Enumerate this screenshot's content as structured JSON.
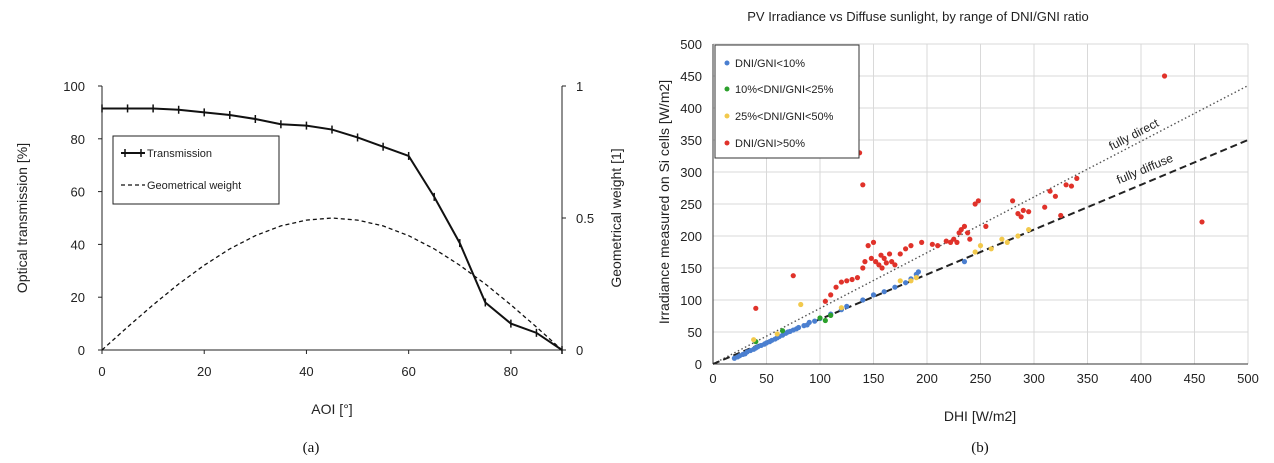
{
  "figure": {
    "caption_a": "(a)",
    "caption_b": "(b)"
  },
  "chart_data": [
    {
      "type": "line",
      "title": "",
      "xlabel": "AOI [°]",
      "ylabel": "Optical transmission [%]",
      "y2label": "Geometrical weight [1]",
      "xlim": [
        0,
        90
      ],
      "ylim": [
        0,
        100
      ],
      "y2lim": [
        0,
        1
      ],
      "xticks": [
        "0",
        "20",
        "40",
        "60",
        "80"
      ],
      "yticks": [
        "0",
        "20",
        "40",
        "60",
        "80",
        "100"
      ],
      "y2ticks": [
        "0",
        "0.5",
        "1"
      ],
      "legend_position": "upper-left",
      "grid": false,
      "series": [
        {
          "name": "Transmission",
          "axis": "left",
          "style": "solid-with-markers",
          "color": "#111111",
          "x": [
            0,
            5,
            10,
            15,
            20,
            25,
            30,
            35,
            40,
            45,
            50,
            55,
            60,
            65,
            70,
            75,
            80,
            85,
            90
          ],
          "y": [
            91.5,
            91.5,
            91.5,
            91,
            90,
            89,
            87.5,
            85.5,
            85,
            83.5,
            80.5,
            77,
            73.5,
            58,
            40.5,
            18,
            10,
            6.5,
            0
          ]
        },
        {
          "name": "Geometrical weight",
          "axis": "right",
          "style": "dashed",
          "color": "#111111",
          "x": [
            0,
            5,
            10,
            15,
            20,
            25,
            30,
            35,
            40,
            45,
            50,
            55,
            60,
            65,
            70,
            75,
            80,
            85,
            90
          ],
          "y": [
            0,
            0.087,
            0.171,
            0.25,
            0.321,
            0.383,
            0.433,
            0.47,
            0.492,
            0.5,
            0.492,
            0.47,
            0.433,
            0.383,
            0.321,
            0.25,
            0.171,
            0.087,
            0
          ]
        }
      ]
    },
    {
      "type": "scatter",
      "title": "PV Irradiance vs Diffuse sunlight, by range of DNI/GNI ratio",
      "xlabel": "DHI [W/m2]",
      "ylabel": "Irradiance measured on Si cells [W/m2]",
      "xlim": [
        0,
        500
      ],
      "ylim": [
        0,
        500
      ],
      "xticks": [
        "0",
        "50",
        "100",
        "150",
        "200",
        "250",
        "300",
        "350",
        "400",
        "450",
        "500"
      ],
      "yticks": [
        "0",
        "50",
        "100",
        "150",
        "200",
        "250",
        "300",
        "350",
        "400",
        "450",
        "500"
      ],
      "grid": true,
      "legend_position": "upper-left",
      "reference_lines": [
        {
          "label": "fully direct",
          "style": "dotted",
          "color": "#555555",
          "slope": 0.87,
          "intercept": 0
        },
        {
          "label": "fully diffuse",
          "style": "dashed",
          "color": "#222222",
          "slope": 0.7,
          "intercept": 0
        }
      ],
      "series": [
        {
          "name": "DNI/GNI<10%",
          "color": "#4a7fd0",
          "points": [
            [
              20,
              9
            ],
            [
              23,
              11
            ],
            [
              25,
              13
            ],
            [
              28,
              15
            ],
            [
              30,
              16
            ],
            [
              32,
              19
            ],
            [
              35,
              21
            ],
            [
              38,
              23
            ],
            [
              40,
              25
            ],
            [
              42,
              27
            ],
            [
              45,
              29
            ],
            [
              48,
              31
            ],
            [
              50,
              33
            ],
            [
              53,
              35
            ],
            [
              55,
              37
            ],
            [
              58,
              39
            ],
            [
              60,
              41
            ],
            [
              62,
              43
            ],
            [
              65,
              45
            ],
            [
              68,
              48
            ],
            [
              70,
              50
            ],
            [
              72,
              51
            ],
            [
              75,
              53
            ],
            [
              78,
              55
            ],
            [
              80,
              57
            ],
            [
              85,
              60
            ],
            [
              88,
              61
            ],
            [
              90,
              65
            ],
            [
              95,
              67
            ],
            [
              100,
              71
            ],
            [
              110,
              78
            ],
            [
              120,
              85
            ],
            [
              125,
              90
            ],
            [
              140,
              100
            ],
            [
              150,
              108
            ],
            [
              160,
              113
            ],
            [
              170,
              120
            ],
            [
              180,
              127
            ],
            [
              185,
              133
            ],
            [
              190,
              140
            ],
            [
              192,
              144
            ],
            [
              235,
              160
            ]
          ]
        },
        {
          "name": "10%<DNI/GNI<25%",
          "color": "#2ca02c",
          "points": [
            [
              40,
              35
            ],
            [
              65,
              52
            ],
            [
              100,
              72
            ],
            [
              105,
              68
            ],
            [
              110,
              76
            ]
          ]
        },
        {
          "name": "25%<DNI/GNI<50%",
          "color": "#f2c94c",
          "points": [
            [
              38,
              38
            ],
            [
              60,
              47
            ],
            [
              82,
              93
            ],
            [
              120,
              88
            ],
            [
              175,
              130
            ],
            [
              185,
              130
            ],
            [
              190,
              135
            ],
            [
              245,
              175
            ],
            [
              250,
              185
            ],
            [
              260,
              180
            ],
            [
              270,
              195
            ],
            [
              275,
              190
            ],
            [
              285,
              200
            ],
            [
              295,
              210
            ]
          ]
        },
        {
          "name": "DNI/GNI>50%",
          "color": "#e0322a",
          "points": [
            [
              40,
              87
            ],
            [
              75,
              138
            ],
            [
              105,
              98
            ],
            [
              110,
              108
            ],
            [
              115,
              120
            ],
            [
              120,
              128
            ],
            [
              125,
              130
            ],
            [
              130,
              132
            ],
            [
              135,
              135
            ],
            [
              137,
              330
            ],
            [
              140,
              280
            ],
            [
              140,
              150
            ],
            [
              142,
              160
            ],
            [
              145,
              185
            ],
            [
              148,
              165
            ],
            [
              150,
              190
            ],
            [
              152,
              160
            ],
            [
              155,
              155
            ],
            [
              157,
              170
            ],
            [
              158,
              150
            ],
            [
              160,
              165
            ],
            [
              162,
              158
            ],
            [
              165,
              172
            ],
            [
              167,
              160
            ],
            [
              170,
              155
            ],
            [
              175,
              172
            ],
            [
              180,
              180
            ],
            [
              185,
              185
            ],
            [
              195,
              190
            ],
            [
              205,
              187
            ],
            [
              210,
              185
            ],
            [
              218,
              192
            ],
            [
              222,
              190
            ],
            [
              225,
              195
            ],
            [
              228,
              190
            ],
            [
              230,
              205
            ],
            [
              232,
              210
            ],
            [
              235,
              215
            ],
            [
              238,
              205
            ],
            [
              240,
              195
            ],
            [
              245,
              250
            ],
            [
              248,
              255
            ],
            [
              255,
              215
            ],
            [
              280,
              255
            ],
            [
              285,
              235
            ],
            [
              288,
              230
            ],
            [
              290,
              240
            ],
            [
              295,
              238
            ],
            [
              310,
              245
            ],
            [
              315,
              270
            ],
            [
              320,
              262
            ],
            [
              325,
              232
            ],
            [
              330,
              280
            ],
            [
              335,
              278
            ],
            [
              340,
              290
            ],
            [
              422,
              450
            ],
            [
              457,
              222
            ]
          ]
        }
      ]
    }
  ]
}
